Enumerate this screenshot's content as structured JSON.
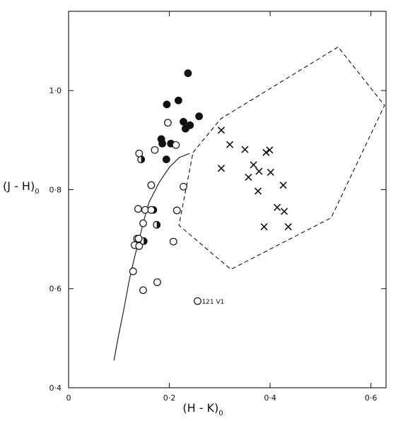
{
  "chart_data": {
    "type": "scatter",
    "title": "",
    "xlabel": "(H - K)",
    "xlabel_sub": "0",
    "ylabel": "(J - H)",
    "ylabel_sub": "0",
    "xlim": [
      0,
      0.63
    ],
    "ylim": [
      0.4,
      1.16
    ],
    "xticks": [
      {
        "value": 0,
        "label": "0"
      },
      {
        "value": 0.2,
        "label": "0·2"
      },
      {
        "value": 0.4,
        "label": "0·4"
      },
      {
        "value": 0.6,
        "label": "0·6"
      }
    ],
    "yticks": [
      {
        "value": 0.4,
        "label": "0·4"
      },
      {
        "value": 0.6,
        "label": "0·6"
      },
      {
        "value": 0.8,
        "label": "0·8"
      },
      {
        "value": 1.0,
        "label": "1·0"
      }
    ],
    "grid": false,
    "series": [
      {
        "marker": "filled-circle",
        "points": [
          [
            0.237,
            1.035
          ],
          [
            0.218,
            0.98
          ],
          [
            0.195,
            0.972
          ],
          [
            0.259,
            0.948
          ],
          [
            0.228,
            0.937
          ],
          [
            0.241,
            0.93
          ],
          [
            0.232,
            0.923
          ],
          [
            0.184,
            0.902
          ],
          [
            0.186,
            0.893
          ],
          [
            0.203,
            0.893
          ],
          [
            0.194,
            0.861
          ]
        ]
      },
      {
        "marker": "half-filled-circle",
        "points": [
          [
            0.144,
            0.861
          ],
          [
            0.168,
            0.759
          ],
          [
            0.175,
            0.729
          ],
          [
            0.136,
            0.701
          ],
          [
            0.149,
            0.696
          ]
        ]
      },
      {
        "marker": "open-circle",
        "points": [
          [
            0.197,
            0.935
          ],
          [
            0.213,
            0.89
          ],
          [
            0.171,
            0.88
          ],
          [
            0.14,
            0.873
          ],
          [
            0.228,
            0.806
          ],
          [
            0.164,
            0.809
          ],
          [
            0.138,
            0.761
          ],
          [
            0.152,
            0.759
          ],
          [
            0.164,
            0.759
          ],
          [
            0.215,
            0.758
          ],
          [
            0.148,
            0.732
          ],
          [
            0.139,
            0.701
          ],
          [
            0.131,
            0.688
          ],
          [
            0.14,
            0.686
          ],
          [
            0.208,
            0.695
          ],
          [
            0.128,
            0.635
          ],
          [
            0.176,
            0.613
          ],
          [
            0.148,
            0.597
          ],
          [
            0.256,
            0.575
          ]
        ]
      },
      {
        "marker": "cross",
        "points": [
          [
            0.303,
            0.92
          ],
          [
            0.32,
            0.891
          ],
          [
            0.35,
            0.881
          ],
          [
            0.392,
            0.875
          ],
          [
            0.399,
            0.88
          ],
          [
            0.303,
            0.843
          ],
          [
            0.367,
            0.85
          ],
          [
            0.378,
            0.837
          ],
          [
            0.357,
            0.825
          ],
          [
            0.401,
            0.835
          ],
          [
            0.426,
            0.809
          ],
          [
            0.376,
            0.797
          ],
          [
            0.414,
            0.764
          ],
          [
            0.428,
            0.756
          ],
          [
            0.388,
            0.725
          ],
          [
            0.436,
            0.725
          ]
        ]
      }
    ],
    "curve": {
      "style": "solid",
      "points": [
        [
          0.09,
          0.455
        ],
        [
          0.1,
          0.51
        ],
        [
          0.11,
          0.56
        ],
        [
          0.12,
          0.615
        ],
        [
          0.13,
          0.66
        ],
        [
          0.14,
          0.7
        ],
        [
          0.15,
          0.74
        ],
        [
          0.16,
          0.775
        ],
        [
          0.18,
          0.815
        ],
        [
          0.2,
          0.845
        ],
        [
          0.22,
          0.865
        ],
        [
          0.24,
          0.873
        ]
      ]
    },
    "region": {
      "style": "dashed",
      "points": [
        [
          0.247,
          0.875
        ],
        [
          0.302,
          0.943
        ],
        [
          0.535,
          1.088
        ],
        [
          0.627,
          0.97
        ],
        [
          0.521,
          0.743
        ],
        [
          0.322,
          0.639
        ],
        [
          0.219,
          0.728
        ],
        [
          0.247,
          0.875
        ]
      ]
    },
    "annotations": [
      {
        "text": "121 V1",
        "x": 0.256,
        "y": 0.575
      }
    ]
  }
}
